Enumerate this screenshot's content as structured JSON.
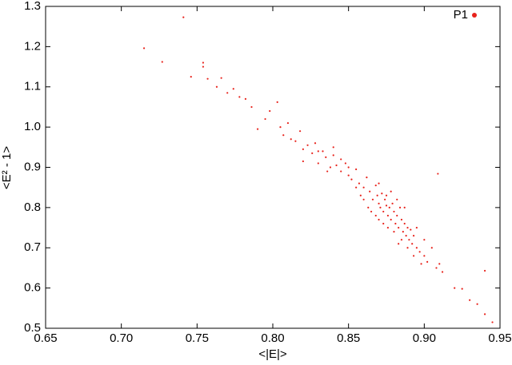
{
  "chart_data": {
    "type": "scatter",
    "xlabel": "<|E|>",
    "ylabel": "<E² - 1>",
    "xlim": [
      0.65,
      0.95
    ],
    "ylim": [
      0.5,
      1.3
    ],
    "xticks": [
      0.65,
      {
        "value": 0.7,
        "label": "0.70"
      },
      0.75,
      {
        "value": 0.8,
        "label": "0.80"
      },
      0.85,
      {
        "value": 0.9,
        "label": "0.90"
      },
      0.95
    ],
    "yticks": [
      0.5,
      0.6,
      0.7,
      0.8,
      0.9,
      {
        "value": 1,
        "label": "1.0"
      },
      1.1,
      1.2,
      1.3
    ],
    "legend": "upper right",
    "x": [
      0.715,
      0.727,
      0.741,
      0.746,
      0.754,
      0.754,
      0.757,
      0.763,
      0.766,
      0.77,
      0.774,
      0.778,
      0.782,
      0.786,
      0.79,
      0.795,
      0.798,
      0.803,
      0.805,
      0.807,
      0.81,
      0.812,
      0.815,
      0.818,
      0.82,
      0.823,
      0.826,
      0.828,
      0.83,
      0.833,
      0.835,
      0.838,
      0.84,
      0.842,
      0.845,
      0.848,
      0.85,
      0.852,
      0.855,
      0.857,
      0.86,
      0.862,
      0.864,
      0.866,
      0.868,
      0.869,
      0.87,
      0.871,
      0.872,
      0.873,
      0.874,
      0.875,
      0.876,
      0.877,
      0.878,
      0.879,
      0.88,
      0.881,
      0.882,
      0.883,
      0.884,
      0.885,
      0.886,
      0.887,
      0.888,
      0.889,
      0.89,
      0.891,
      0.892,
      0.893,
      0.895,
      0.897,
      0.9,
      0.902,
      0.905,
      0.908,
      0.91,
      0.912,
      0.86,
      0.865,
      0.87,
      0.875,
      0.878,
      0.882,
      0.885,
      0.87,
      0.868,
      0.88,
      0.873,
      0.876,
      0.883,
      0.889,
      0.893,
      0.898,
      0.9,
      0.895,
      0.887,
      0.863,
      0.858,
      0.855,
      0.85,
      0.845,
      0.84,
      0.836,
      0.83,
      0.82,
      0.92,
      0.925,
      0.93,
      0.935,
      0.94,
      0.945,
      0.94,
      0.909
    ],
    "series": [
      {
        "name": "P1",
        "color": "#e8231c",
        "values": [
          1.196,
          1.162,
          1.273,
          1.125,
          1.16,
          1.15,
          1.12,
          1.1,
          1.122,
          1.085,
          1.095,
          1.075,
          1.07,
          1.05,
          0.995,
          1.02,
          1.04,
          1.062,
          1.0,
          0.98,
          1.01,
          0.97,
          0.965,
          0.99,
          0.945,
          0.955,
          0.935,
          0.96,
          0.91,
          0.94,
          0.925,
          0.9,
          0.93,
          0.905,
          0.89,
          0.91,
          0.88,
          0.87,
          0.895,
          0.86,
          0.85,
          0.875,
          0.84,
          0.82,
          0.855,
          0.83,
          0.81,
          0.8,
          0.835,
          0.79,
          0.82,
          0.805,
          0.78,
          0.8,
          0.77,
          0.81,
          0.79,
          0.76,
          0.78,
          0.75,
          0.8,
          0.77,
          0.74,
          0.76,
          0.73,
          0.75,
          0.72,
          0.745,
          0.71,
          0.73,
          0.7,
          0.69,
          0.68,
          0.665,
          0.7,
          0.65,
          0.66,
          0.64,
          0.82,
          0.79,
          0.77,
          0.83,
          0.84,
          0.82,
          0.72,
          0.86,
          0.78,
          0.74,
          0.76,
          0.75,
          0.71,
          0.7,
          0.68,
          0.66,
          0.72,
          0.75,
          0.8,
          0.8,
          0.83,
          0.85,
          0.9,
          0.92,
          0.95,
          0.89,
          0.94,
          0.915,
          0.6,
          0.598,
          0.57,
          0.56,
          0.535,
          0.515,
          0.643,
          0.884
        ]
      }
    ]
  }
}
